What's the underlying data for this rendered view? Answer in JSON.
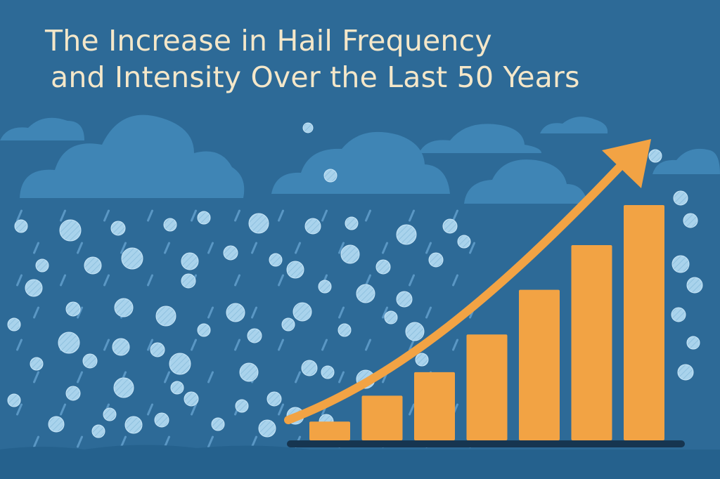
{
  "colors": {
    "background": "#2d6a97",
    "cloud": "#3f85b5",
    "hail": "#a9d3ec",
    "accent": "#f2a344",
    "baseline": "#163550",
    "title": "#f4e7c9"
  },
  "icons": [
    "cloud-icon",
    "hailstone-icon",
    "trend-arrow-icon"
  ],
  "title": {
    "line1": "The Increase in Hail Frequency",
    "line2": "and Intensity Over the Last 50 Years"
  },
  "chart_data": {
    "type": "bar",
    "title": "The Increase in Hail Frequency and Intensity Over the Last 50 Years",
    "categories": [
      "",
      "",
      "",
      "",
      "",
      "",
      ""
    ],
    "values": [
      0.08,
      0.19,
      0.29,
      0.45,
      0.64,
      0.83,
      1.0
    ],
    "ylim": [
      0,
      1
    ],
    "grid": false,
    "legend": "none",
    "trend_arrow": true
  }
}
